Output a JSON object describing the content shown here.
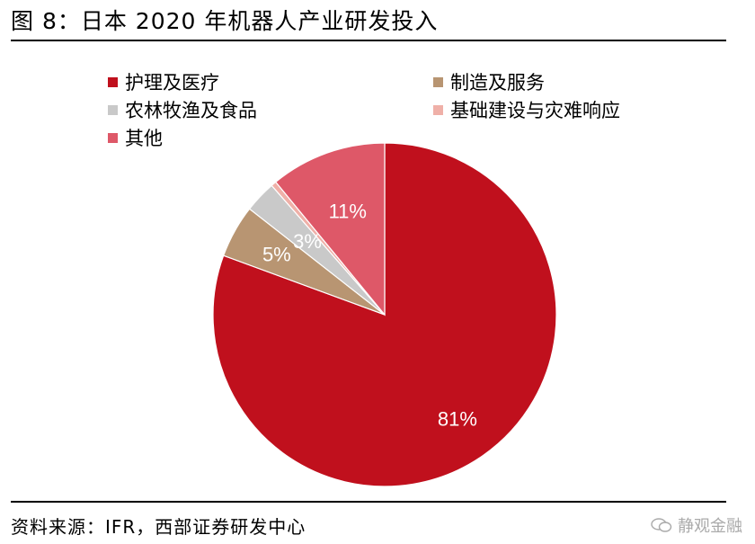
{
  "title": "图 8：日本 2020 年机器人产业研发投入",
  "source": "资料来源：IFR，西部证券研发中心",
  "watermark": "静观金融",
  "chart_data": {
    "type": "pie",
    "title": "",
    "labels": [
      "护理及医疗",
      "制造及服务",
      "农林牧渔及食品",
      "基础建设与灾难响应",
      "其他"
    ],
    "values": [
      81,
      5,
      3,
      0.5,
      11
    ],
    "data_labels": [
      "81%",
      "5%",
      "3%",
      "",
      "11%"
    ],
    "colors": [
      "#C0101D",
      "#B89572",
      "#C9C9C9",
      "#EFB0A8",
      "#DE5868"
    ],
    "legend_position": "top"
  }
}
